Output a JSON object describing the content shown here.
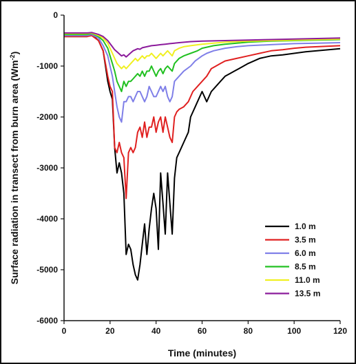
{
  "chart_data": {
    "type": "line",
    "xlabel": "Time (minutes)",
    "ylabel_main": "Surface radiation in transect from burn area (Wm",
    "ylabel_sup": "-2",
    "ylabel_close": ")",
    "xlim": [
      0,
      120
    ],
    "ylim": [
      -6000,
      0
    ],
    "xticks": [
      0,
      20,
      40,
      60,
      80,
      100,
      120
    ],
    "yticks": [
      0,
      -1000,
      -2000,
      -3000,
      -4000,
      -5000,
      -6000
    ],
    "grid": false,
    "legend_position": "bottom-right",
    "series": [
      {
        "name": "1.0 m",
        "color": "#000000",
        "points": [
          [
            0,
            -420
          ],
          [
            5,
            -420
          ],
          [
            10,
            -420
          ],
          [
            12,
            -380
          ],
          [
            15,
            -500
          ],
          [
            17,
            -700
          ],
          [
            18,
            -1000
          ],
          [
            19,
            -1300
          ],
          [
            20,
            -1500
          ],
          [
            21,
            -1650
          ],
          [
            22,
            -2600
          ],
          [
            23,
            -3100
          ],
          [
            24,
            -2900
          ],
          [
            25,
            -3100
          ],
          [
            26,
            -3500
          ],
          [
            27,
            -4700
          ],
          [
            28,
            -4500
          ],
          [
            29,
            -4600
          ],
          [
            30,
            -4900
          ],
          [
            31,
            -5100
          ],
          [
            32,
            -5200
          ],
          [
            33,
            -4900
          ],
          [
            34,
            -4500
          ],
          [
            35,
            -4100
          ],
          [
            36,
            -4700
          ],
          [
            37,
            -4200
          ],
          [
            38,
            -3800
          ],
          [
            39,
            -3500
          ],
          [
            40,
            -3800
          ],
          [
            41,
            -4600
          ],
          [
            42,
            -3100
          ],
          [
            43,
            -3700
          ],
          [
            44,
            -4300
          ],
          [
            45,
            -3100
          ],
          [
            46,
            -3700
          ],
          [
            47,
            -4300
          ],
          [
            48,
            -3200
          ],
          [
            49,
            -2800
          ],
          [
            50,
            -2700
          ],
          [
            52,
            -2500
          ],
          [
            54,
            -2300
          ],
          [
            55,
            -2000
          ],
          [
            57,
            -1800
          ],
          [
            58,
            -1700
          ],
          [
            60,
            -1500
          ],
          [
            62,
            -1700
          ],
          [
            64,
            -1500
          ],
          [
            66,
            -1400
          ],
          [
            68,
            -1300
          ],
          [
            70,
            -1200
          ],
          [
            72,
            -1150
          ],
          [
            74,
            -1100
          ],
          [
            76,
            -1050
          ],
          [
            78,
            -1000
          ],
          [
            80,
            -950
          ],
          [
            85,
            -850
          ],
          [
            90,
            -800
          ],
          [
            95,
            -780
          ],
          [
            100,
            -750
          ],
          [
            105,
            -720
          ],
          [
            110,
            -700
          ],
          [
            115,
            -680
          ],
          [
            120,
            -660
          ]
        ]
      },
      {
        "name": "3.5 m",
        "color": "#e02020",
        "points": [
          [
            0,
            -420
          ],
          [
            10,
            -420
          ],
          [
            12,
            -400
          ],
          [
            15,
            -500
          ],
          [
            17,
            -700
          ],
          [
            19,
            -1200
          ],
          [
            20,
            -1400
          ],
          [
            21,
            -1500
          ],
          [
            22,
            -2600
          ],
          [
            23,
            -2700
          ],
          [
            24,
            -2500
          ],
          [
            25,
            -2700
          ],
          [
            26,
            -2800
          ],
          [
            27,
            -3600
          ],
          [
            28,
            -2700
          ],
          [
            29,
            -2600
          ],
          [
            30,
            -2700
          ],
          [
            31,
            -2600
          ],
          [
            32,
            -2300
          ],
          [
            33,
            -2200
          ],
          [
            34,
            -2400
          ],
          [
            35,
            -2100
          ],
          [
            36,
            -2400
          ],
          [
            37,
            -2200
          ],
          [
            38,
            -2200
          ],
          [
            39,
            -2000
          ],
          [
            40,
            -2300
          ],
          [
            41,
            -2100
          ],
          [
            42,
            -2000
          ],
          [
            43,
            -2300
          ],
          [
            44,
            -2000
          ],
          [
            45,
            -2200
          ],
          [
            46,
            -2400
          ],
          [
            47,
            -2500
          ],
          [
            48,
            -2000
          ],
          [
            49,
            -1900
          ],
          [
            50,
            -1850
          ],
          [
            52,
            -1800
          ],
          [
            54,
            -1700
          ],
          [
            56,
            -1500
          ],
          [
            58,
            -1400
          ],
          [
            60,
            -1300
          ],
          [
            62,
            -1200
          ],
          [
            64,
            -1050
          ],
          [
            66,
            -1000
          ],
          [
            68,
            -950
          ],
          [
            70,
            -900
          ],
          [
            75,
            -850
          ],
          [
            80,
            -800
          ],
          [
            85,
            -750
          ],
          [
            90,
            -700
          ],
          [
            95,
            -680
          ],
          [
            100,
            -650
          ],
          [
            105,
            -630
          ],
          [
            110,
            -620
          ],
          [
            115,
            -610
          ],
          [
            120,
            -600
          ]
        ]
      },
      {
        "name": "6.0 m",
        "color": "#7f7fe8",
        "points": [
          [
            0,
            -400
          ],
          [
            10,
            -400
          ],
          [
            12,
            -380
          ],
          [
            15,
            -450
          ],
          [
            17,
            -600
          ],
          [
            19,
            -800
          ],
          [
            20,
            -1000
          ],
          [
            21,
            -1200
          ],
          [
            22,
            -1500
          ],
          [
            23,
            -1800
          ],
          [
            24,
            -2000
          ],
          [
            25,
            -2100
          ],
          [
            26,
            -1700
          ],
          [
            27,
            -1700
          ],
          [
            28,
            -1600
          ],
          [
            29,
            -1600
          ],
          [
            30,
            -1700
          ],
          [
            31,
            -1600
          ],
          [
            32,
            -1500
          ],
          [
            33,
            -1500
          ],
          [
            34,
            -1600
          ],
          [
            35,
            -1700
          ],
          [
            36,
            -1600
          ],
          [
            37,
            -1400
          ],
          [
            38,
            -1500
          ],
          [
            39,
            -1600
          ],
          [
            40,
            -1600
          ],
          [
            41,
            -1500
          ],
          [
            42,
            -1400
          ],
          [
            43,
            -1500
          ],
          [
            44,
            -1400
          ],
          [
            45,
            -1600
          ],
          [
            46,
            -1700
          ],
          [
            47,
            -1600
          ],
          [
            48,
            -1300
          ],
          [
            50,
            -1200
          ],
          [
            52,
            -1100
          ],
          [
            55,
            -1000
          ],
          [
            57,
            -900
          ],
          [
            60,
            -800
          ],
          [
            62,
            -750
          ],
          [
            65,
            -700
          ],
          [
            70,
            -650
          ],
          [
            75,
            -620
          ],
          [
            80,
            -600
          ],
          [
            90,
            -580
          ],
          [
            100,
            -560
          ],
          [
            110,
            -550
          ],
          [
            120,
            -540
          ]
        ]
      },
      {
        "name": "8.5 m",
        "color": "#20c020",
        "points": [
          [
            0,
            -380
          ],
          [
            10,
            -380
          ],
          [
            12,
            -360
          ],
          [
            15,
            -420
          ],
          [
            17,
            -500
          ],
          [
            19,
            -650
          ],
          [
            20,
            -800
          ],
          [
            21,
            -950
          ],
          [
            22,
            -1100
          ],
          [
            23,
            -1300
          ],
          [
            24,
            -1400
          ],
          [
            25,
            -1500
          ],
          [
            26,
            -1300
          ],
          [
            27,
            -1400
          ],
          [
            28,
            -1300
          ],
          [
            29,
            -1300
          ],
          [
            30,
            -1250
          ],
          [
            31,
            -1200
          ],
          [
            32,
            -1150
          ],
          [
            33,
            -1200
          ],
          [
            34,
            -1100
          ],
          [
            35,
            -1200
          ],
          [
            36,
            -1100
          ],
          [
            37,
            -1100
          ],
          [
            38,
            -1000
          ],
          [
            39,
            -1100
          ],
          [
            40,
            -1200
          ],
          [
            41,
            -1100
          ],
          [
            42,
            -1050
          ],
          [
            43,
            -1150
          ],
          [
            44,
            -1050
          ],
          [
            45,
            -1000
          ],
          [
            46,
            -1050
          ],
          [
            47,
            -1100
          ],
          [
            48,
            -950
          ],
          [
            50,
            -850
          ],
          [
            52,
            -800
          ],
          [
            55,
            -750
          ],
          [
            58,
            -700
          ],
          [
            60,
            -650
          ],
          [
            65,
            -600
          ],
          [
            70,
            -570
          ],
          [
            75,
            -550
          ],
          [
            80,
            -530
          ],
          [
            90,
            -510
          ],
          [
            100,
            -500
          ],
          [
            110,
            -490
          ],
          [
            120,
            -480
          ]
        ]
      },
      {
        "name": "11.0 m",
        "color": "#f0f020",
        "points": [
          [
            0,
            -360
          ],
          [
            10,
            -360
          ],
          [
            12,
            -350
          ],
          [
            15,
            -400
          ],
          [
            17,
            -450
          ],
          [
            19,
            -550
          ],
          [
            20,
            -650
          ],
          [
            21,
            -750
          ],
          [
            22,
            -850
          ],
          [
            23,
            -950
          ],
          [
            24,
            -1000
          ],
          [
            25,
            -1050
          ],
          [
            26,
            -1000
          ],
          [
            27,
            -1050
          ],
          [
            28,
            -1000
          ],
          [
            29,
            -950
          ],
          [
            30,
            -900
          ],
          [
            31,
            -850
          ],
          [
            32,
            -900
          ],
          [
            33,
            -850
          ],
          [
            34,
            -800
          ],
          [
            35,
            -850
          ],
          [
            36,
            -800
          ],
          [
            37,
            -800
          ],
          [
            38,
            -750
          ],
          [
            39,
            -800
          ],
          [
            40,
            -850
          ],
          [
            41,
            -800
          ],
          [
            42,
            -750
          ],
          [
            43,
            -800
          ],
          [
            44,
            -750
          ],
          [
            45,
            -700
          ],
          [
            46,
            -750
          ],
          [
            47,
            -800
          ],
          [
            48,
            -700
          ],
          [
            50,
            -650
          ],
          [
            52,
            -620
          ],
          [
            55,
            -600
          ],
          [
            60,
            -570
          ],
          [
            65,
            -550
          ],
          [
            70,
            -530
          ],
          [
            80,
            -510
          ],
          [
            90,
            -500
          ],
          [
            100,
            -490
          ],
          [
            110,
            -480
          ],
          [
            120,
            -470
          ]
        ]
      },
      {
        "name": "13.5 m",
        "color": "#8b1a9b",
        "points": [
          [
            0,
            -350
          ],
          [
            10,
            -350
          ],
          [
            12,
            -340
          ],
          [
            15,
            -380
          ],
          [
            17,
            -420
          ],
          [
            19,
            -500
          ],
          [
            20,
            -560
          ],
          [
            21,
            -620
          ],
          [
            22,
            -680
          ],
          [
            23,
            -720
          ],
          [
            24,
            -760
          ],
          [
            25,
            -800
          ],
          [
            26,
            -780
          ],
          [
            27,
            -820
          ],
          [
            28,
            -780
          ],
          [
            29,
            -740
          ],
          [
            30,
            -700
          ],
          [
            31,
            -680
          ],
          [
            32,
            -660
          ],
          [
            33,
            -670
          ],
          [
            34,
            -640
          ],
          [
            35,
            -630
          ],
          [
            36,
            -620
          ],
          [
            38,
            -600
          ],
          [
            40,
            -590
          ],
          [
            42,
            -580
          ],
          [
            44,
            -570
          ],
          [
            46,
            -560
          ],
          [
            48,
            -550
          ],
          [
            50,
            -540
          ],
          [
            55,
            -520
          ],
          [
            60,
            -510
          ],
          [
            70,
            -500
          ],
          [
            80,
            -490
          ],
          [
            90,
            -480
          ],
          [
            100,
            -470
          ],
          [
            110,
            -460
          ],
          [
            120,
            -450
          ]
        ]
      }
    ]
  }
}
